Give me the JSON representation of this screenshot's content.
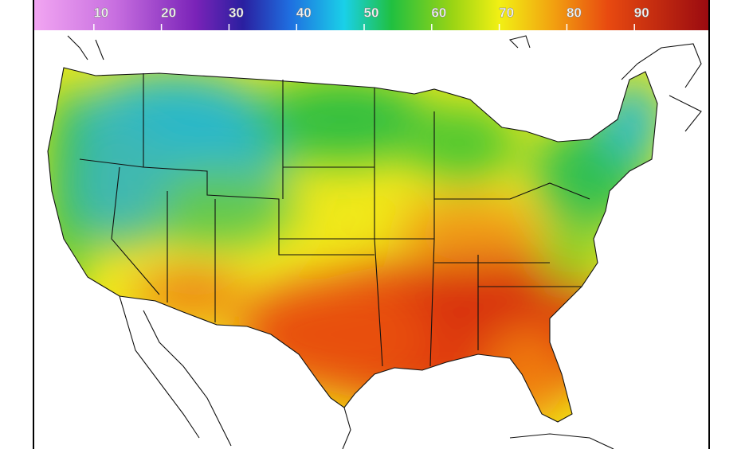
{
  "legend": {
    "range": [
      0,
      100
    ],
    "ticks": [
      10,
      20,
      30,
      40,
      50,
      60,
      70,
      80,
      90
    ]
  }
}
